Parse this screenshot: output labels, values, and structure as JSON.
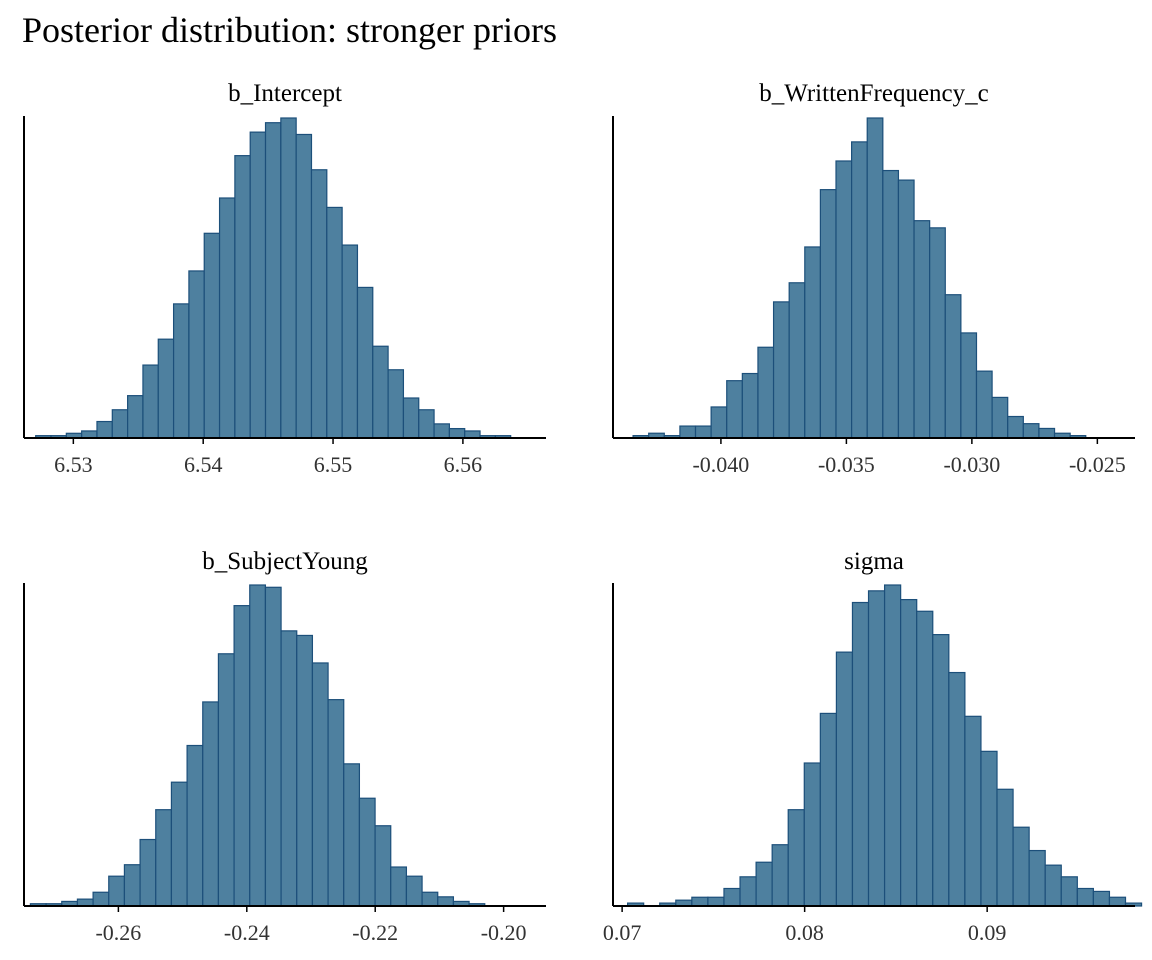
{
  "chart_data": {
    "type": "histogram",
    "title": "Posterior distribution: stronger priors",
    "grid": false,
    "y_axis_labels": false,
    "bar_fill": "#4e809f",
    "bar_stroke": "#1c4f7a",
    "panels": [
      {
        "title": "b_Intercept",
        "xlim": [
          6.5262,
          6.5664
        ],
        "ticks": [
          6.53,
          6.54,
          6.55,
          6.56
        ],
        "tick_labels": [
          "6.53",
          "6.54",
          "6.55",
          "6.56"
        ],
        "bins": {
          "start": 6.5271,
          "width": 0.00118,
          "counts": [
            1,
            1,
            2,
            3,
            7,
            12,
            18,
            31,
            42,
            57,
            71,
            87,
            102,
            120,
            130,
            134,
            136,
            129,
            114,
            98,
            82,
            64,
            39,
            29,
            17,
            12,
            6,
            4,
            3,
            1,
            1
          ]
        }
      },
      {
        "title": "b_WrittenFrequency_c",
        "xlim": [
          -0.0443,
          -0.0235
        ],
        "ticks": [
          -0.04,
          -0.035,
          -0.03,
          -0.025
        ],
        "tick_labels": [
          "-0.040",
          "-0.035",
          "-0.030",
          "-0.025"
        ],
        "bins": {
          "start": -0.0435,
          "width": 0.000622,
          "counts": [
            1,
            2,
            1,
            5,
            5,
            13,
            24,
            27,
            38,
            57,
            65,
            80,
            104,
            116,
            124,
            134,
            112,
            108,
            91,
            88,
            60,
            44,
            28,
            17,
            9,
            6,
            4,
            2,
            1
          ]
        }
      },
      {
        "title": "b_SubjectYoung",
        "xlim": [
          -0.2747,
          -0.1934
        ],
        "ticks": [
          -0.26,
          -0.24,
          -0.22,
          -0.2
        ],
        "tick_labels": [
          "-0.26",
          "-0.24",
          "-0.22",
          "-0.20"
        ],
        "bins": {
          "start": -0.2737,
          "width": 0.00244,
          "counts": [
            1,
            1,
            2,
            3,
            6,
            13,
            18,
            29,
            42,
            54,
            70,
            89,
            110,
            131,
            140,
            139,
            120,
            118,
            106,
            90,
            62,
            47,
            35,
            17,
            13,
            6,
            4,
            2,
            1
          ]
        }
      },
      {
        "title": "sigma",
        "xlim": [
          0.0695,
          0.0981
        ],
        "ticks": [
          0.07,
          0.08,
          0.09
        ],
        "tick_labels": [
          "0.07",
          "0.08",
          "0.09"
        ],
        "bins": {
          "start": 0.0703,
          "width": 0.00088,
          "counts": [
            1,
            0,
            1,
            2,
            3,
            3,
            6,
            10,
            15,
            21,
            33,
            49,
            66,
            87,
            104,
            108,
            110,
            105,
            101,
            93,
            80,
            65,
            53,
            40,
            27,
            19,
            14,
            10,
            6,
            5,
            3,
            1
          ]
        }
      }
    ]
  }
}
